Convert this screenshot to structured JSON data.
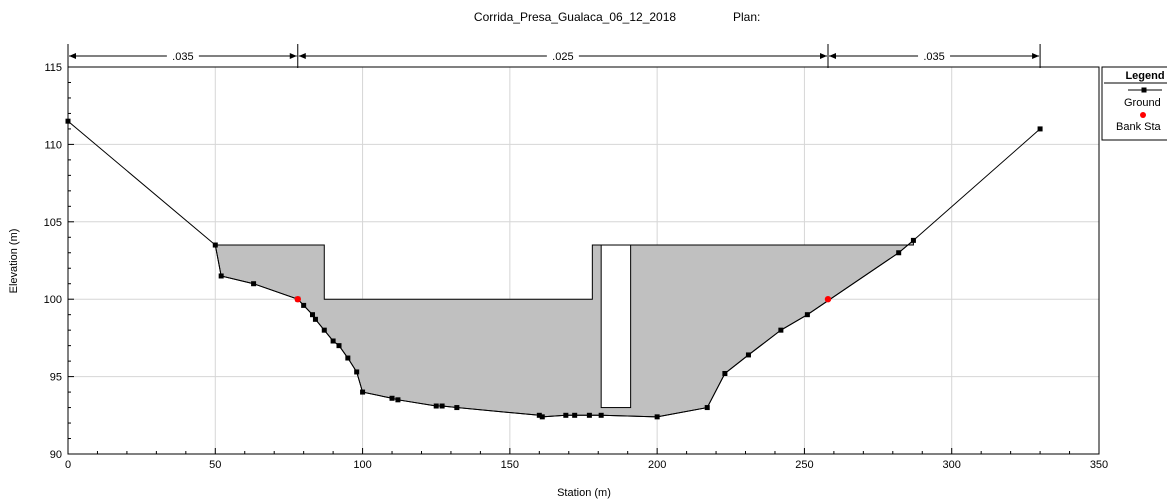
{
  "chart_data": {
    "type": "line",
    "title": "Corrida_Presa_Gualaca_06_12_2018",
    "plan_label": "Plan:",
    "xlabel": "Station (m)",
    "ylabel": "Elevation (m)",
    "xlim": [
      0,
      350
    ],
    "ylim": [
      90,
      115
    ],
    "x_ticks": [
      0,
      50,
      100,
      150,
      200,
      250,
      300,
      350
    ],
    "y_ticks": [
      90,
      95,
      100,
      105,
      110,
      115
    ],
    "grid": true,
    "legend": {
      "title": "Legend",
      "position": "top-right",
      "entries": [
        "Ground",
        "Bank Sta"
      ]
    },
    "manning_n": [
      {
        "label": ".035",
        "from": 0,
        "to": 78
      },
      {
        "label": ".025",
        "from": 78,
        "to": 258
      },
      {
        "label": ".035",
        "from": 258,
        "to": 330
      }
    ],
    "series": [
      {
        "name": "Ground",
        "color": "#000000",
        "x": [
          0,
          50,
          52,
          63,
          78,
          80,
          83,
          84,
          87,
          90,
          92,
          95,
          98,
          100,
          110,
          112,
          125,
          127,
          132,
          160,
          161,
          169,
          172,
          177,
          181,
          200,
          217,
          223,
          231,
          242,
          251,
          282,
          287,
          330
        ],
        "y": [
          111.5,
          103.5,
          101.5,
          101.0,
          100.0,
          99.6,
          99.0,
          98.7,
          98.0,
          97.3,
          97.0,
          96.2,
          95.3,
          94.0,
          93.6,
          93.5,
          93.1,
          93.1,
          93.0,
          92.5,
          92.4,
          92.5,
          92.5,
          92.5,
          92.5,
          92.4,
          93.0,
          95.2,
          96.4,
          98.0,
          99.0,
          103.0,
          103.8,
          111.0
        ]
      },
      {
        "name": "Bank Sta",
        "color": "#ff0000",
        "x": [
          78,
          258
        ],
        "y": [
          100.0,
          100.0
        ]
      }
    ],
    "obstruction_fill": "#c0c0c0",
    "obstructions": [
      {
        "x": [
          50,
          87,
          87,
          178,
          178,
          287
        ],
        "y": [
          103.5,
          103.5,
          100.0,
          100.0,
          103.5,
          103.5
        ]
      }
    ],
    "pier": {
      "x": [
        181,
        191
      ],
      "y": [
        93.0,
        103.5
      ]
    }
  }
}
